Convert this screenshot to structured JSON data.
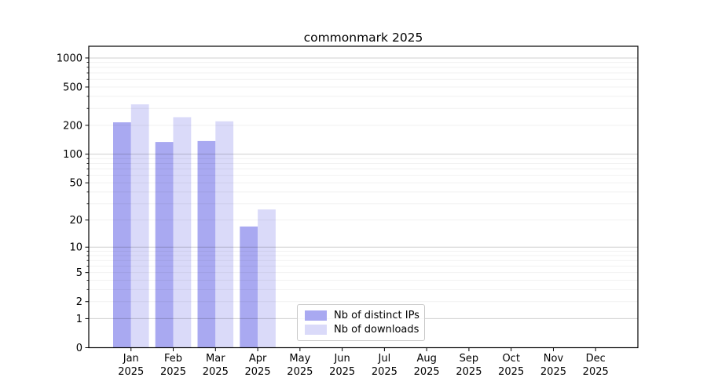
{
  "chart_data": {
    "type": "bar",
    "title": "commonmark 2025",
    "categories": [
      "Jan",
      "Feb",
      "Mar",
      "Apr",
      "May",
      "Jun",
      "Jul",
      "Aug",
      "Sep",
      "Oct",
      "Nov",
      "Dec"
    ],
    "year": "2025",
    "series": [
      {
        "name": "Nb of distinct IPs",
        "color": "#a9a9f1",
        "values": [
          215,
          134,
          137,
          17,
          0,
          0,
          0,
          0,
          0,
          0,
          0,
          0
        ]
      },
      {
        "name": "Nb of downloads",
        "color": "#dadaf9",
        "values": [
          330,
          243,
          220,
          26,
          0,
          0,
          0,
          0,
          0,
          0,
          0,
          0
        ]
      }
    ],
    "yticks": [
      0,
      1,
      2,
      5,
      10,
      20,
      50,
      100,
      200,
      500,
      1000
    ],
    "scale": "log1p",
    "ylim": [
      0,
      1320
    ],
    "xlabel": "",
    "ylabel": "",
    "grid": true,
    "legend_position": "lower center"
  }
}
